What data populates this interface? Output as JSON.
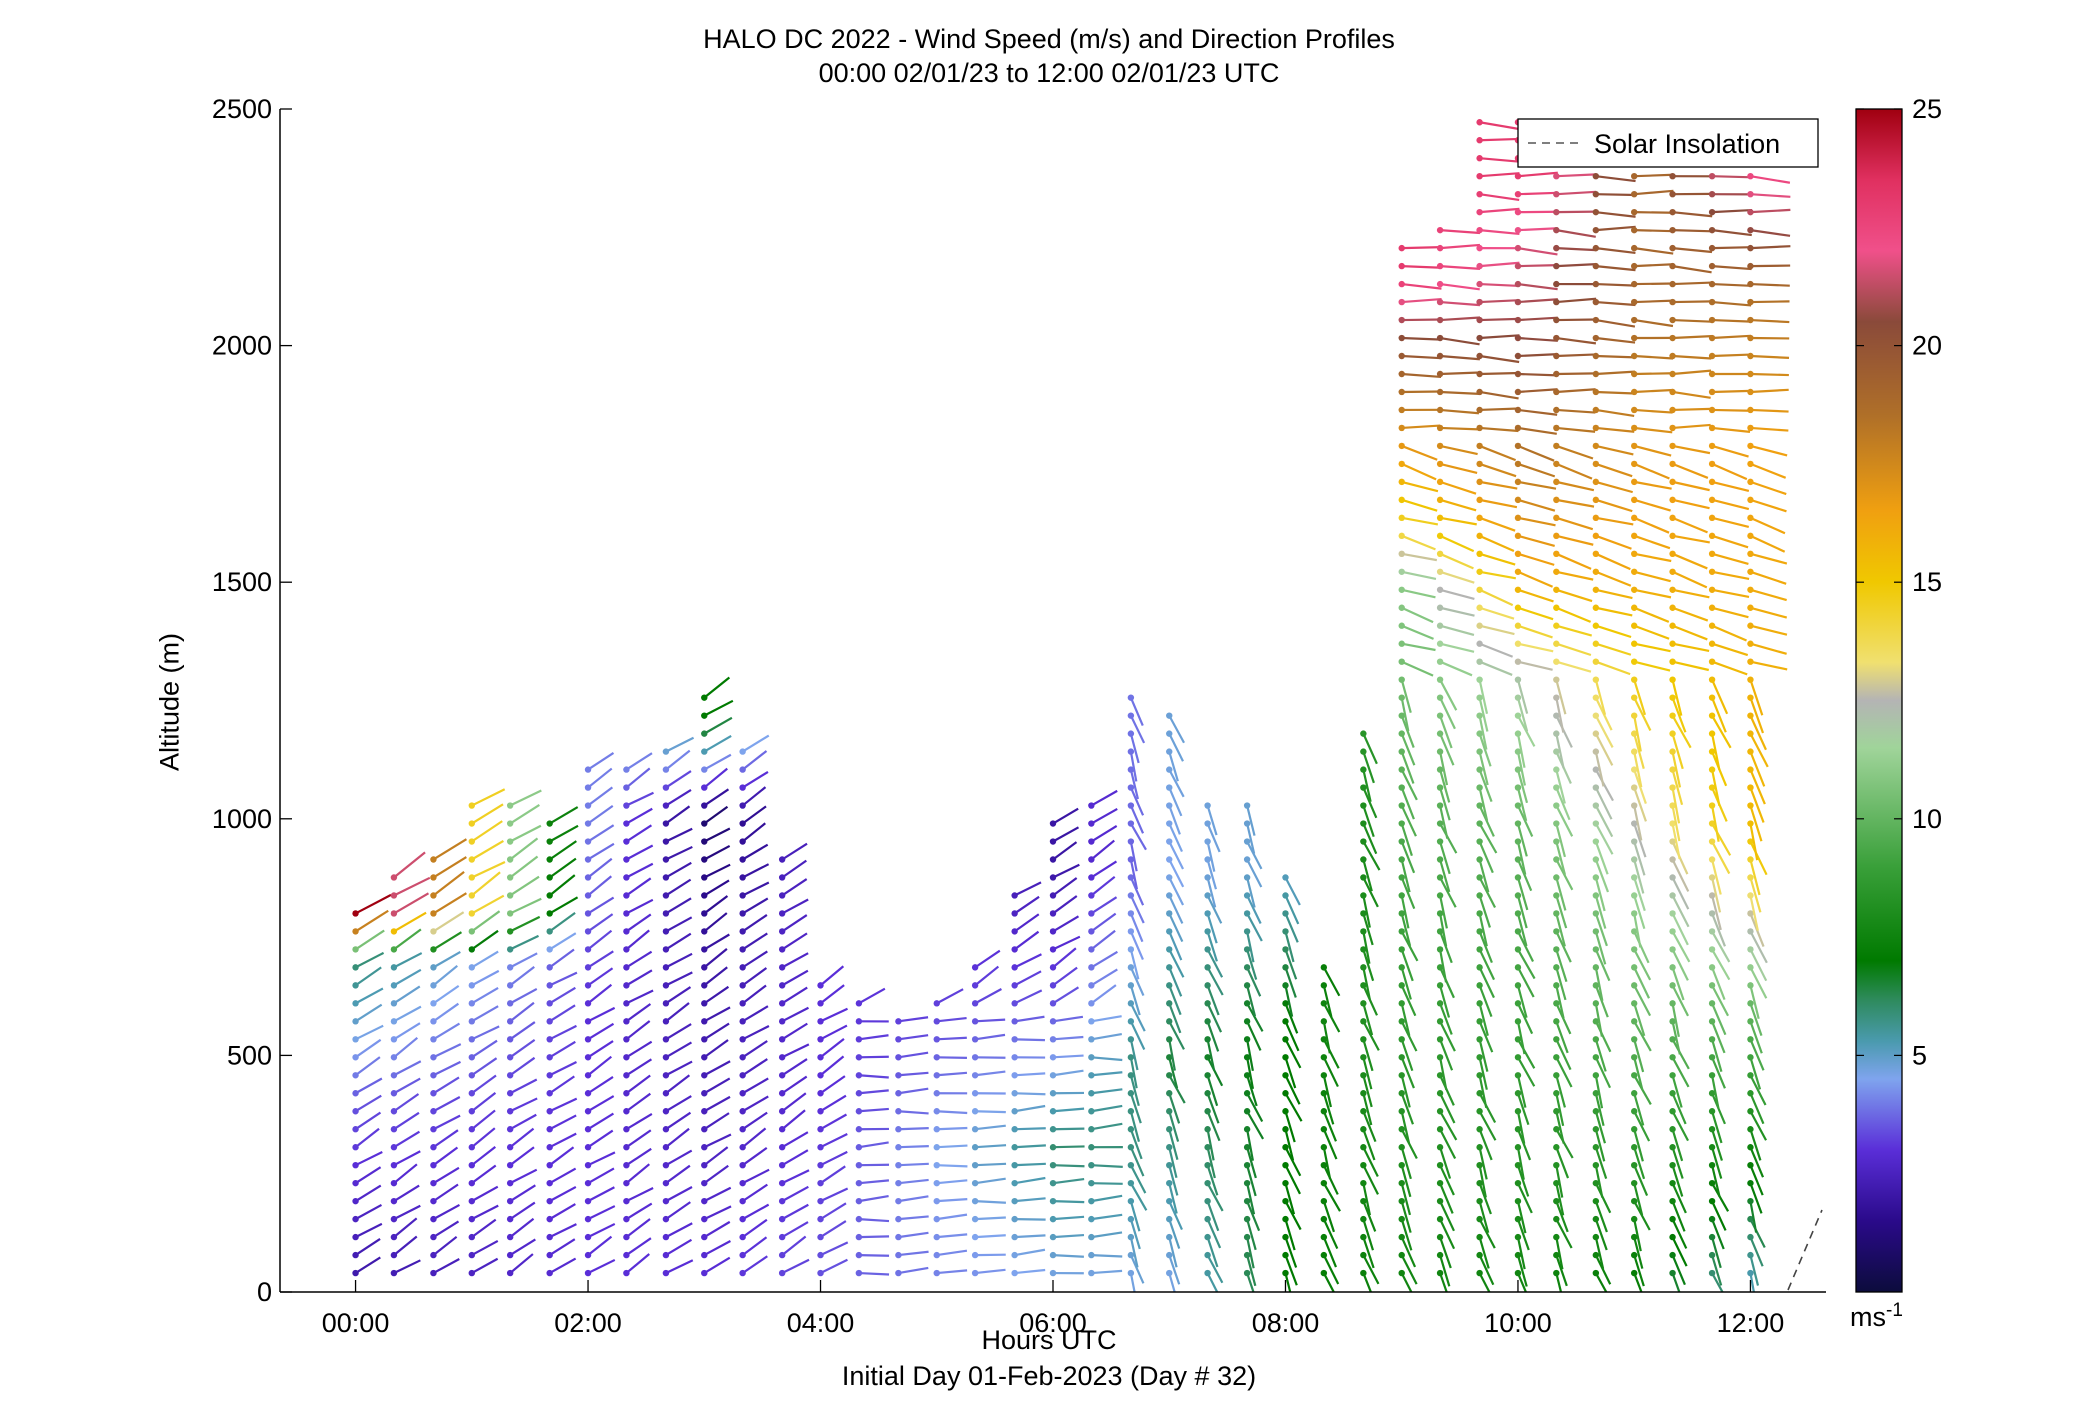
{
  "title": "HALO DC 2022 - Wind Speed (m/s) and Direction Profiles",
  "subtitle": "00:00 02/01/23 to 12:00 02/01/23  UTC",
  "xlabel": "Hours UTC",
  "xsublabel": "Initial Day 01-Feb-2023 (Day # 32)",
  "ylabel": "Altitude (m)",
  "colorbar_unit": "ms",
  "colorbar_unit_exp": "-1",
  "legend_label": "Solar Insolation",
  "chart_data": {
    "type": "wind-barb profile",
    "x_ticks": [
      "00:00",
      "02:00",
      "04:00",
      "06:00",
      "08:00",
      "10:00",
      "12:00"
    ],
    "x_tick_values": [
      0,
      2,
      4,
      6,
      8,
      10,
      12
    ],
    "xlim": [
      -0.65,
      12.65
    ],
    "y_ticks": [
      "0",
      "500",
      "1000",
      "1500",
      "2000",
      "2500"
    ],
    "y_tick_values": [
      0,
      500,
      1000,
      1500,
      2000,
      2500
    ],
    "ylim": [
      0,
      2500
    ],
    "colorbar": {
      "ticks": [
        "5",
        "10",
        "15",
        "20",
        "25"
      ],
      "tick_values": [
        5,
        10,
        15,
        20,
        25
      ],
      "range": [
        0,
        25
      ],
      "color_stops": [
        {
          "v": 0,
          "c": "#0c0c3c"
        },
        {
          "v": 1.5,
          "c": "#2a0a8a"
        },
        {
          "v": 3,
          "c": "#5a2ed8"
        },
        {
          "v": 4.5,
          "c": "#7fa4ee"
        },
        {
          "v": 5.3,
          "c": "#4a9aae"
        },
        {
          "v": 6.2,
          "c": "#2d8a5a"
        },
        {
          "v": 7,
          "c": "#007a00"
        },
        {
          "v": 9,
          "c": "#3aa03a"
        },
        {
          "v": 11.5,
          "c": "#a0d49a"
        },
        {
          "v": 12.5,
          "c": "#b4b4b4"
        },
        {
          "v": 13.3,
          "c": "#f0e070"
        },
        {
          "v": 15,
          "c": "#f0c800"
        },
        {
          "v": 16.5,
          "c": "#f0a010"
        },
        {
          "v": 18.5,
          "c": "#b07028"
        },
        {
          "v": 20.5,
          "c": "#8a4a3a"
        },
        {
          "v": 22,
          "c": "#f0508a"
        },
        {
          "v": 23.5,
          "c": "#e03060"
        },
        {
          "v": 25,
          "c": "#a00010"
        }
      ]
    },
    "time_hours": [
      0,
      0.33,
      0.67,
      1.0,
      1.33,
      1.67,
      2.0,
      2.33,
      2.67,
      3.0,
      3.33,
      3.67,
      4.0,
      4.33,
      4.67,
      5.0,
      5.33,
      5.67,
      6.0,
      6.33,
      6.67,
      7.0,
      7.33,
      7.67,
      8.0,
      8.33,
      8.67,
      9.0,
      9.33,
      9.67,
      10.0,
      10.33,
      10.67,
      11.0,
      11.33,
      11.67,
      12.0
    ],
    "profile_top_altitude_m": [
      820,
      900,
      950,
      1050,
      1060,
      1000,
      1120,
      1130,
      1160,
      1260,
      1160,
      940,
      650,
      610,
      580,
      640,
      700,
      860,
      1020,
      1060,
      1270,
      1250,
      1030,
      1060,
      900,
      720,
      1190,
      2230,
      2250,
      2500,
      2500,
      2500,
      2500,
      2500,
      2500,
      2500,
      2500
    ],
    "speed_profiles_ms": [
      {
        "time": 0,
        "segments": [
          [
            0,
            2
          ],
          [
            400,
            3.5
          ],
          [
            700,
            6
          ],
          [
            800,
            25
          ]
        ]
      },
      {
        "time": 2,
        "segments": [
          [
            0,
            3
          ],
          [
            600,
            3
          ],
          [
            1000,
            4
          ]
        ]
      },
      {
        "time": 3,
        "segments": [
          [
            0,
            3
          ],
          [
            700,
            2
          ],
          [
            1000,
            1
          ],
          [
            1200,
            7
          ]
        ]
      },
      {
        "time": 4,
        "segments": [
          [
            0,
            3.5
          ],
          [
            400,
            3
          ]
        ]
      },
      {
        "time": 6,
        "segments": [
          [
            0,
            4.5
          ],
          [
            300,
            6
          ],
          [
            600,
            3.5
          ],
          [
            900,
            2
          ]
        ]
      },
      {
        "time": 7,
        "segments": [
          [
            0,
            4.5
          ],
          [
            500,
            6.5
          ],
          [
            900,
            4.5
          ],
          [
            1200,
            4.8
          ]
        ]
      },
      {
        "time": 8,
        "segments": [
          [
            0,
            7
          ],
          [
            600,
            7
          ],
          [
            900,
            5
          ]
        ]
      },
      {
        "time": 9,
        "segments": [
          [
            0,
            7.5
          ],
          [
            1000,
            9.5
          ],
          [
            1500,
            11
          ],
          [
            1600,
            14
          ],
          [
            1800,
            17
          ],
          [
            2000,
            20
          ],
          [
            2150,
            23
          ]
        ]
      },
      {
        "time": 10,
        "segments": [
          [
            0,
            7.5
          ],
          [
            1000,
            10
          ],
          [
            1300,
            12
          ],
          [
            1500,
            16
          ],
          [
            1800,
            18.5
          ],
          [
            2000,
            20.5
          ],
          [
            2200,
            21.5
          ],
          [
            2350,
            23
          ]
        ]
      },
      {
        "time": 11,
        "segments": [
          [
            0,
            7
          ],
          [
            800,
            11
          ],
          [
            1200,
            14
          ],
          [
            1500,
            16
          ],
          [
            1800,
            17
          ],
          [
            2100,
            19
          ]
        ]
      },
      {
        "time": 12,
        "segments": [
          [
            0,
            5
          ],
          [
            600,
            10
          ],
          [
            1000,
            15.5
          ],
          [
            1800,
            16.5
          ],
          [
            2100,
            18.5
          ],
          [
            2400,
            23
          ]
        ]
      }
    ],
    "grid": false,
    "legend_placement": "top-right"
  }
}
